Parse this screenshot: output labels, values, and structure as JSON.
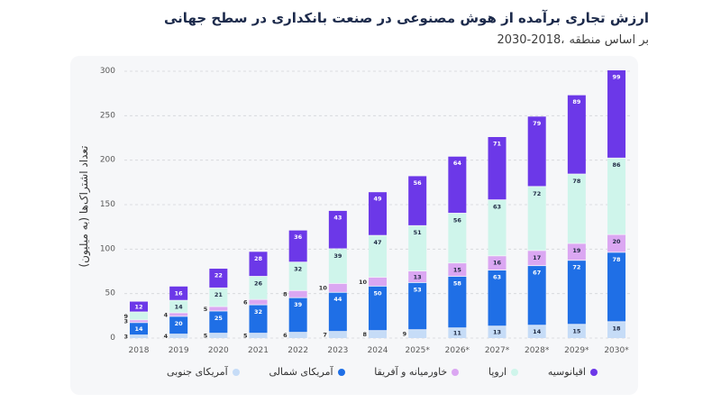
{
  "chart_data": {
    "type": "bar",
    "stacked": true,
    "title": "ارزش تجاری برآمده از هوش مصنوعی در صنعت بانکداری در سطح جهانی",
    "subtitle": {
      "years": "2030-2018،",
      "text": "بر اساس منطقه"
    },
    "ylabel": "تعداد اشتراک‌ها (به میلیون)",
    "ylim": [
      0,
      300
    ],
    "yticks": [
      0,
      50,
      100,
      150,
      200,
      250,
      300
    ],
    "grid": true,
    "legend_position": "bottom",
    "categories": [
      "2018",
      "2019",
      "2020",
      "2021",
      "2022",
      "2023",
      "2024",
      "2025*",
      "2026*",
      "2027*",
      "2028*",
      "2029*",
      "2030*"
    ],
    "series": [
      {
        "name": "آمریکای جنوبی",
        "color": "#c6dcf7",
        "label_color": "#1f2a44",
        "values": [
          3,
          4,
          5,
          5,
          6,
          7,
          8,
          9,
          11,
          13,
          14,
          15,
          18
        ]
      },
      {
        "name": "آمریکای شمالی",
        "color": "#1f6fe6",
        "label_color": "#ffffff",
        "values": [
          14,
          20,
          25,
          32,
          39,
          44,
          50,
          53,
          58,
          63,
          67,
          72,
          78
        ]
      },
      {
        "name": "خاورمیانه و آفریقا",
        "color": "#dba7f2",
        "label_color": "#1f2a44",
        "values": [
          3,
          4,
          5,
          6,
          8,
          10,
          10,
          13,
          15,
          16,
          17,
          19,
          20
        ]
      },
      {
        "name": "اروپا",
        "color": "#cff5eb",
        "label_color": "#1f2a44",
        "values": [
          9,
          14,
          21,
          26,
          32,
          39,
          47,
          51,
          56,
          63,
          72,
          78,
          86
        ]
      },
      {
        "name": "اقیانوسیه",
        "color": "#6c38e8",
        "label_color": "#ffffff",
        "values": [
          12,
          16,
          22,
          28,
          36,
          43,
          49,
          56,
          64,
          71,
          79,
          89,
          99
        ]
      }
    ]
  }
}
